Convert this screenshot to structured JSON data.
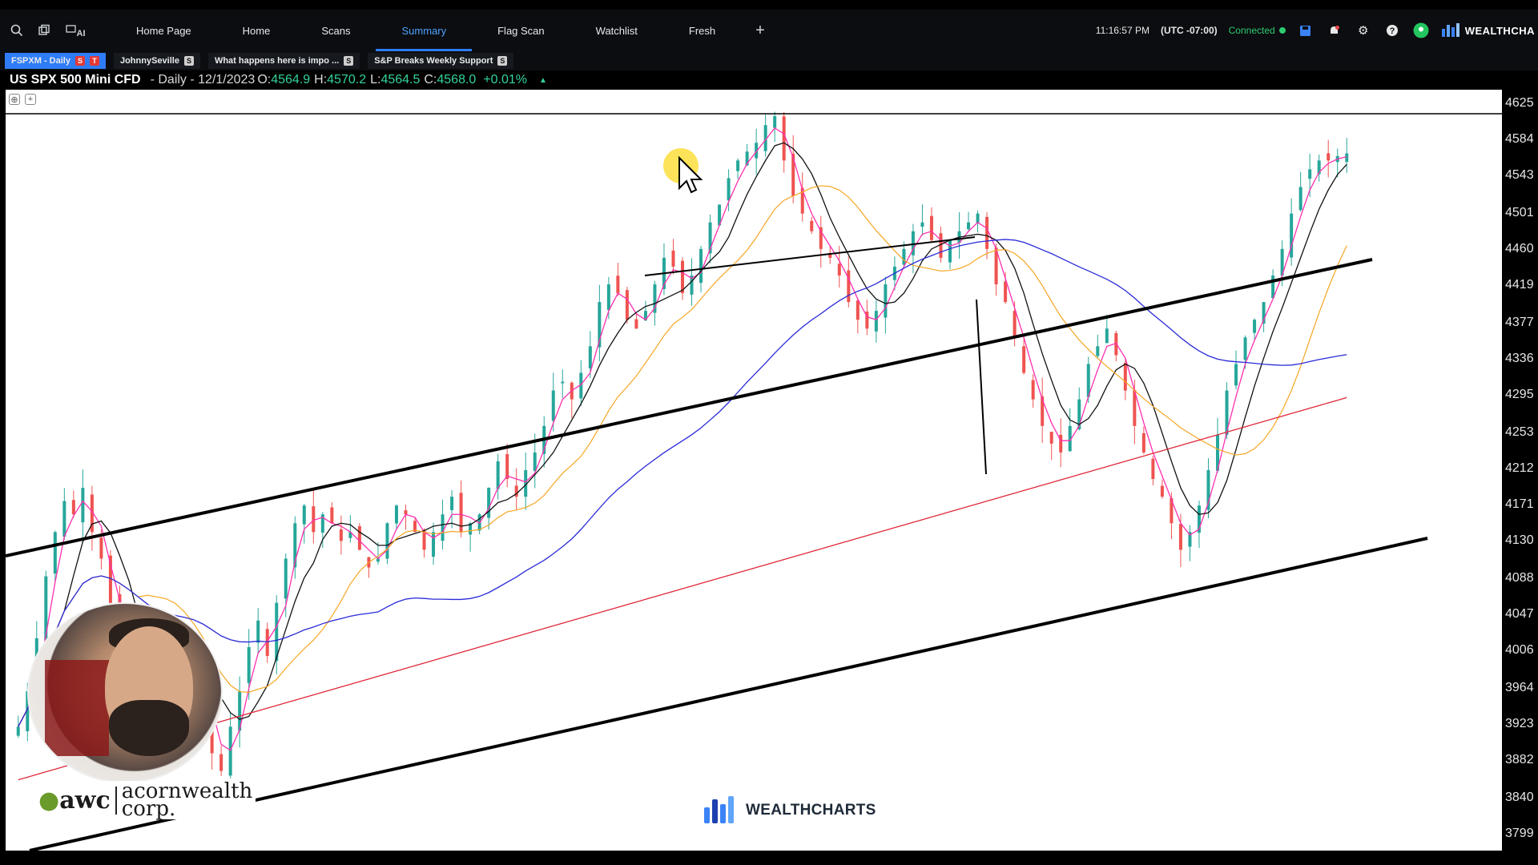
{
  "toolbar": {
    "left_icons": [
      "search-icon",
      "layers-icon",
      "ai-icon"
    ],
    "ai_label": "AI",
    "tabs": [
      {
        "label": "Home Page",
        "active": false
      },
      {
        "label": "Home",
        "active": false
      },
      {
        "label": "Scans",
        "active": false
      },
      {
        "label": "Summary",
        "active": true
      },
      {
        "label": "Flag Scan",
        "active": false
      },
      {
        "label": "Watchlist",
        "active": false
      },
      {
        "label": "Fresh",
        "active": false
      }
    ],
    "add_tab": "+"
  },
  "status": {
    "time": "11:16:57 PM",
    "timezone": "(UTC -07:00)",
    "connection": "Connected",
    "brand": "WEALTHCHA"
  },
  "chart_tabs": [
    {
      "label": "FSPXM - Daily",
      "badges": [
        "S",
        "T"
      ],
      "active": true
    },
    {
      "label": "JohnnySeville",
      "badges": [
        "S"
      ],
      "active": false
    },
    {
      "label": "What happens here is impo ...",
      "badges": [
        "S"
      ],
      "active": false
    },
    {
      "label": "S&P Breaks Weekly Support",
      "badges": [
        "S"
      ],
      "active": false
    }
  ],
  "info": {
    "symbol": "US SPX 500 Mini CFD",
    "period": "- Daily - 12/1/2023",
    "o_label": "O:",
    "o": "4564.9",
    "h_label": "H:",
    "h": "4570.2",
    "l_label": "L:",
    "l": "4564.5",
    "c_label": "C:",
    "c": "4568.0",
    "change": "+0.01%"
  },
  "watermark": "WEALTHCHARTS",
  "overlay_logo": {
    "awc": "awc",
    "name_line1": "acornwealth",
    "name_line2": "corp."
  },
  "colors": {
    "up": "#26a69a",
    "down": "#ef5350",
    "accent": "#2f7df6",
    "connected": "#2ecc71"
  },
  "chart_data": {
    "type": "candlestick",
    "symbol": "US SPX 500 Mini CFD",
    "timeframe": "Daily",
    "ylim": [
      3780,
      4640
    ],
    "y_ticks": [
      "4625",
      "4584",
      "4543",
      "4501",
      "4460",
      "4419",
      "4377",
      "4336",
      "4295",
      "4253",
      "4212",
      "4171",
      "4130",
      "4088",
      "4047",
      "4006",
      "3964",
      "3923",
      "3882",
      "3840",
      "3799"
    ],
    "close_path": [
      3920,
      3960,
      4020,
      4090,
      4140,
      4175,
      4160,
      4190,
      4140,
      4110,
      4060,
      4020,
      3990,
      3960,
      3945,
      3935,
      3990,
      4020,
      4005,
      3990,
      3940,
      3890,
      3870,
      3920,
      3960,
      4010,
      4040,
      4000,
      4060,
      4110,
      4150,
      4170,
      4140,
      4160,
      4150,
      4130,
      4140,
      4120,
      4100,
      4110,
      4150,
      4170,
      4160,
      4140,
      4120,
      4140,
      4160,
      4180,
      4140,
      4150,
      4160,
      4190,
      4220,
      4200,
      4180,
      4210,
      4230,
      4260,
      4300,
      4310,
      4290,
      4320,
      4350,
      4400,
      4420,
      4410,
      4380,
      4370,
      4390,
      4420,
      4450,
      4440,
      4410,
      4430,
      4460,
      4490,
      4510,
      4540,
      4560,
      4570,
      4580,
      4600,
      4610,
      4560,
      4520,
      4500,
      4480,
      4460,
      4450,
      4430,
      4400,
      4380,
      4370,
      4390,
      4420,
      4440,
      4460,
      4480,
      4490,
      4470,
      4450,
      4470,
      4480,
      4490,
      4500,
      4460,
      4420,
      4400,
      4360,
      4320,
      4290,
      4260,
      4240,
      4230,
      4260,
      4290,
      4330,
      4350,
      4370,
      4340,
      4300,
      4260,
      4230,
      4200,
      4180,
      4150,
      4120,
      4140,
      4170,
      4210,
      4250,
      4300,
      4330,
      4360,
      4380,
      4400,
      4430,
      4460,
      4500,
      4530,
      4550,
      4560,
      4560,
      4565,
      4568
    ]
  }
}
